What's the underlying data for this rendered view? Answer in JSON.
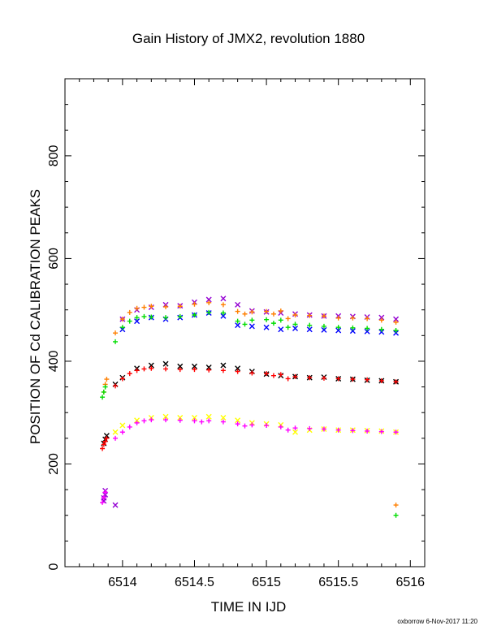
{
  "chart_data": {
    "type": "scatter",
    "title": "Gain History of JMX2, revolution 1880",
    "xlabel": "TIME IN IJD",
    "ylabel": "POSITION OF Cd CALIBRATION PEAKS",
    "xlim": [
      6513.6,
      6516.1
    ],
    "ylim": [
      0,
      950
    ],
    "x_ticks": [
      6514,
      6514.5,
      6515,
      6515.5,
      6516
    ],
    "x_tick_labels": [
      "6514",
      "6514.5",
      "6515",
      "6515.5",
      "6516"
    ],
    "y_ticks": [
      0,
      200,
      400,
      600,
      800
    ],
    "y_tick_labels": [
      "0",
      "200",
      "400",
      "600",
      "800"
    ],
    "grid": false,
    "legend": "none",
    "series": [
      {
        "marker": "x",
        "color": "#9400d3",
        "x": [
          6513.87,
          6513.87,
          6513.88,
          6513.88,
          6513.95,
          6514.0,
          6514.1,
          6514.2,
          6514.3,
          6514.4,
          6514.5,
          6514.6,
          6514.7,
          6514.8,
          6514.9,
          6515.0,
          6515.1,
          6515.2,
          6515.3,
          6515.4,
          6515.5,
          6515.6,
          6515.7,
          6515.8,
          6515.9
        ],
        "y": [
          128,
          134,
          140,
          148,
          120,
          482,
          500,
          505,
          510,
          508,
          515,
          520,
          522,
          510,
          498,
          496,
          494,
          492,
          490,
          488,
          488,
          487,
          486,
          485,
          482
        ]
      },
      {
        "marker": "+",
        "color": "#ff7f00",
        "x": [
          6513.87,
          6513.88,
          6513.89,
          6513.95,
          6514.0,
          6514.05,
          6514.1,
          6514.15,
          6514.2,
          6514.3,
          6514.4,
          6514.5,
          6514.6,
          6514.7,
          6514.8,
          6514.85,
          6514.9,
          6515.0,
          6515.05,
          6515.1,
          6515.15,
          6515.2,
          6515.3,
          6515.4,
          6515.5,
          6515.6,
          6515.7,
          6515.8,
          6515.9,
          6515.9
        ],
        "y": [
          340,
          355,
          365,
          455,
          482,
          495,
          503,
          505,
          507,
          506,
          507,
          511,
          514,
          510,
          497,
          492,
          496,
          497,
          492,
          498,
          483,
          490,
          489,
          488,
          484,
          484,
          483,
          480,
          476,
          120
        ]
      },
      {
        "marker": "x",
        "color": "#0000ff",
        "x": [
          6514.0,
          6514.1,
          6514.2,
          6514.3,
          6514.4,
          6514.5,
          6514.6,
          6514.7,
          6514.8,
          6514.9,
          6515.0,
          6515.1,
          6515.2,
          6515.3,
          6515.4,
          6515.5,
          6515.6,
          6515.7,
          6515.8,
          6515.9
        ],
        "y": [
          462,
          478,
          485,
          482,
          485,
          490,
          494,
          488,
          470,
          468,
          466,
          462,
          464,
          462,
          461,
          460,
          459,
          458,
          457,
          455
        ]
      },
      {
        "marker": "+",
        "color": "#00dd00",
        "x": [
          6513.86,
          6513.87,
          6513.88,
          6513.95,
          6514.0,
          6514.05,
          6514.1,
          6514.15,
          6514.2,
          6514.3,
          6514.4,
          6514.5,
          6514.6,
          6514.7,
          6514.8,
          6514.85,
          6514.9,
          6515.0,
          6515.05,
          6515.1,
          6515.15,
          6515.2,
          6515.3,
          6515.4,
          6515.5,
          6515.6,
          6515.7,
          6515.8,
          6515.9,
          6515.9
        ],
        "y": [
          330,
          340,
          350,
          438,
          466,
          478,
          485,
          487,
          486,
          485,
          487,
          490,
          495,
          494,
          478,
          472,
          480,
          481,
          474,
          480,
          466,
          472,
          470,
          468,
          466,
          465,
          464,
          462,
          460,
          100
        ]
      },
      {
        "marker": "x",
        "color": "#000000",
        "x": [
          6513.87,
          6513.88,
          6513.89,
          6513.95,
          6514.0,
          6514.1,
          6514.2,
          6514.3,
          6514.4,
          6514.5,
          6514.6,
          6514.7,
          6514.8,
          6514.9,
          6515.0,
          6515.1,
          6515.2,
          6515.3,
          6515.4,
          6515.5,
          6515.6,
          6515.7,
          6515.8,
          6515.9
        ],
        "y": [
          240,
          248,
          255,
          355,
          368,
          386,
          392,
          395,
          390,
          390,
          388,
          392,
          386,
          380,
          375,
          372,
          370,
          368,
          369,
          366,
          365,
          363,
          362,
          360
        ]
      },
      {
        "marker": "+",
        "color": "#ff0000",
        "x": [
          6513.86,
          6513.87,
          6513.88,
          6513.89,
          6513.95,
          6514.0,
          6514.05,
          6514.1,
          6514.15,
          6514.2,
          6514.3,
          6514.4,
          6514.5,
          6514.6,
          6514.7,
          6514.8,
          6514.9,
          6515.0,
          6515.05,
          6515.1,
          6515.15,
          6515.2,
          6515.3,
          6515.4,
          6515.5,
          6515.6,
          6515.7,
          6515.8,
          6515.9
        ],
        "y": [
          230,
          238,
          244,
          250,
          352,
          366,
          376,
          382,
          385,
          386,
          385,
          384,
          384,
          383,
          382,
          380,
          377,
          376,
          372,
          374,
          366,
          370,
          368,
          367,
          366,
          365,
          364,
          362,
          360
        ]
      },
      {
        "marker": "x",
        "color": "#ffff00",
        "x": [
          6513.95,
          6514.0,
          6514.1,
          6514.2,
          6514.3,
          6514.4,
          6514.5,
          6514.6,
          6514.7,
          6514.8,
          6514.9,
          6515.0,
          6515.1,
          6515.2,
          6515.3,
          6515.4,
          6515.5,
          6515.6,
          6515.7,
          6515.8,
          6515.9
        ],
        "y": [
          262,
          275,
          285,
          290,
          292,
          290,
          290,
          292,
          290,
          285,
          280,
          278,
          276,
          262,
          266,
          268,
          266,
          266,
          265,
          264,
          262
        ]
      },
      {
        "marker": "+",
        "color": "#ff00ff",
        "x": [
          6513.86,
          6513.87,
          6513.88,
          6513.95,
          6514.0,
          6514.05,
          6514.1,
          6514.15,
          6514.2,
          6514.3,
          6514.4,
          6514.5,
          6514.55,
          6514.6,
          6514.7,
          6514.8,
          6514.85,
          6514.9,
          6515.0,
          6515.1,
          6515.15,
          6515.2,
          6515.3,
          6515.4,
          6515.5,
          6515.6,
          6515.7,
          6515.8,
          6515.9
        ],
        "y": [
          125,
          135,
          145,
          250,
          262,
          272,
          280,
          284,
          286,
          286,
          285,
          284,
          282,
          284,
          282,
          278,
          274,
          276,
          275,
          272,
          266,
          270,
          269,
          268,
          266,
          265,
          264,
          263,
          262
        ]
      }
    ],
    "footer": "oxborrow  6-Nov-2017 11:20"
  }
}
